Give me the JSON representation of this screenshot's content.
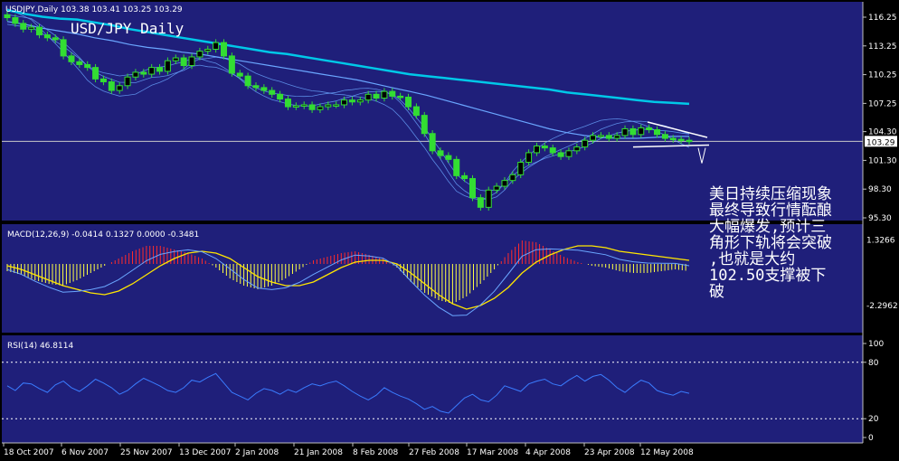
{
  "chart_data": {
    "type": "line",
    "symbol_header": "USDJPY,Daily  103.38 103.41 103.25 103.29",
    "overlay_title": "USD/JPY Daily",
    "price_ticks": [
      "116.25",
      "113.25",
      "110.25",
      "107.25",
      "104.30",
      "101.30",
      "98.30",
      "95.30"
    ],
    "price_ticks_v": [
      116.25,
      113.25,
      110.25,
      107.25,
      104.3,
      101.3,
      98.3,
      95.3
    ],
    "current_price": "103.29",
    "current_price_v": 103.29,
    "x_dates": [
      "18 Oct 2007",
      "6 Nov 2007",
      "25 Nov 2007",
      "13 Dec 2007",
      "2 Jan 2008",
      "21 Jan 2008",
      "8 Feb 2008",
      "27 Feb 2008",
      "17 Mar 2008",
      "4 Apr 2008",
      "23 Apr 2008",
      "12 May 2008"
    ],
    "price_close": [
      116.2,
      115.6,
      115.0,
      115.2,
      114.4,
      114.1,
      113.9,
      112.2,
      111.6,
      111.3,
      111.0,
      109.8,
      109.5,
      108.6,
      109.1,
      110.0,
      110.5,
      110.3,
      111.0,
      110.6,
      111.7,
      112.0,
      111.2,
      112.1,
      112.7,
      112.9,
      113.6,
      112.2,
      110.4,
      110.1,
      109.1,
      108.9,
      108.6,
      108.2,
      107.7,
      106.9,
      107.0,
      107.1,
      106.6,
      106.9,
      107.1,
      107.1,
      107.6,
      107.4,
      107.6,
      108.2,
      107.8,
      108.5,
      108.0,
      107.9,
      106.9,
      106.0,
      104.1,
      102.3,
      101.8,
      101.4,
      99.7,
      99.4,
      97.4,
      96.4,
      98.2,
      98.6,
      99.2,
      99.8,
      101.1,
      102.1,
      102.8,
      102.6,
      102.1,
      101.7,
      102.3,
      102.7,
      103.4,
      103.9,
      103.9,
      103.6,
      103.9,
      104.6,
      104.0,
      104.7,
      104.5,
      104.0,
      103.6,
      103.5,
      103.4,
      103.3
    ],
    "ma_slow": [
      117.0,
      116.6,
      116.3,
      116.1,
      116.0,
      115.7,
      115.4,
      115.0,
      114.7,
      114.4,
      114.1,
      113.8,
      113.5,
      113.2,
      112.9,
      112.6,
      112.4,
      112.1,
      111.8,
      111.5,
      111.2,
      110.9,
      110.6,
      110.3,
      110.1,
      109.9,
      109.7,
      109.5,
      109.3,
      109.1,
      108.9,
      108.7,
      108.4,
      108.2,
      108.0,
      107.8,
      107.6,
      107.4,
      107.3,
      107.2
    ],
    "ma_mid": [
      115.8,
      115.5,
      115.1,
      114.8,
      114.5,
      114.1,
      113.8,
      113.4,
      113.1,
      112.9,
      112.6,
      112.4,
      112.1,
      111.8,
      111.5,
      111.2,
      110.9,
      110.6,
      110.3,
      110.0,
      109.7,
      109.3,
      108.9,
      108.5,
      108.1,
      107.6,
      107.1,
      106.6,
      106.1,
      105.6,
      105.1,
      104.6,
      104.2,
      103.9,
      103.7,
      103.6,
      103.6,
      103.7,
      103.8,
      103.8
    ],
    "macd_hist": [
      -0.4,
      -0.6,
      -0.9,
      -1.1,
      -1.2,
      -0.9,
      -0.5,
      -0.1,
      0.3,
      0.7,
      1.0,
      1.0,
      0.8,
      0.6,
      0.3,
      -0.2,
      -0.8,
      -1.2,
      -1.4,
      -1.2,
      -0.8,
      -0.3,
      0.2,
      0.4,
      0.6,
      0.7,
      0.5,
      0.3,
      -0.2,
      -1.0,
      -1.6,
      -2.0,
      -2.2,
      -1.8,
      -1.1,
      -0.3,
      0.6,
      1.3,
      1.2,
      0.8,
      0.4,
      0.1,
      -0.1,
      -0.2,
      -0.4,
      -0.5,
      -0.5,
      -0.4,
      -0.3,
      -0.4
    ],
    "macd_signal": [
      -0.1,
      -0.3,
      -0.6,
      -0.9,
      -1.2,
      -1.4,
      -1.6,
      -1.7,
      -1.5,
      -1.1,
      -0.6,
      -0.1,
      0.3,
      0.6,
      0.7,
      0.6,
      0.3,
      -0.2,
      -0.7,
      -1.0,
      -1.2,
      -1.2,
      -1.0,
      -0.6,
      -0.2,
      0.1,
      0.2,
      0.2,
      0.0,
      -0.5,
      -1.1,
      -1.7,
      -2.2,
      -2.5,
      -2.3,
      -1.9,
      -1.3,
      -0.5,
      0.1,
      0.5,
      0.8,
      1.0,
      1.0,
      0.9,
      0.7,
      0.6,
      0.5,
      0.4,
      0.3,
      0.2
    ],
    "macd_header": "MACD(12,26,9) -0.0414 0.1327 0.0000 -0.3481",
    "macd_ticks": [
      "1.3266",
      "-2.2962"
    ],
    "macd_ticks_v": [
      1.3266,
      -2.2962
    ],
    "rsi_header": "RSI(14) 46.8114",
    "rsi_ticks": [
      "100",
      "80",
      "20",
      "0"
    ],
    "rsi_ticks_v": [
      100,
      80,
      20,
      0
    ],
    "rsi_values": [
      55,
      50,
      58,
      57,
      52,
      48,
      56,
      60,
      53,
      49,
      55,
      62,
      58,
      53,
      46,
      50,
      57,
      63,
      59,
      55,
      50,
      48,
      53,
      61,
      59,
      64,
      68,
      58,
      48,
      44,
      40,
      47,
      52,
      50,
      46,
      51,
      48,
      53,
      57,
      55,
      58,
      60,
      55,
      49,
      44,
      40,
      45,
      53,
      48,
      44,
      41,
      36,
      30,
      33,
      28,
      26,
      34,
      42,
      46,
      40,
      38,
      45,
      55,
      52,
      49,
      57,
      60,
      62,
      57,
      55,
      61,
      66,
      60,
      65,
      67,
      61,
      53,
      48,
      55,
      61,
      58,
      50,
      47,
      45,
      49,
      47
    ],
    "annotation": "美日持续压缩现象\n最终导致行情酝酿\n大幅爆发,预计三\n角形下轨将会突破\n,也就是大约\n102.50支撑被下\n破",
    "colors": {
      "panel_bg": "#1f1f7a",
      "grid": "#c0c0c0",
      "candles": "#33dd33",
      "ma_slow": "#00c8e8",
      "ma_thin": "#6aa6ff",
      "macd_pos": "#ff2b2b",
      "macd_neg": "#ffff44",
      "signal": "#ffe600",
      "rsi": "#3a7cff",
      "level": "#c8c8c8",
      "triangle": "#ffffff"
    }
  }
}
